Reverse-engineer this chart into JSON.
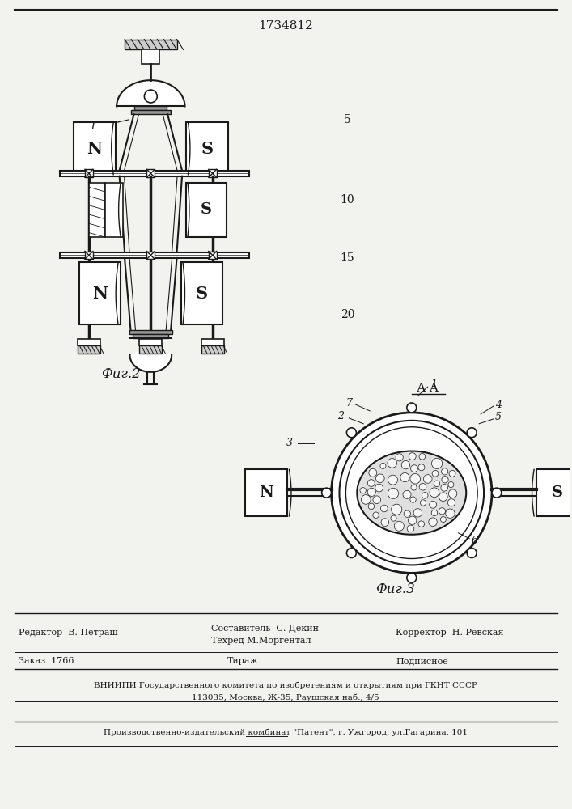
{
  "patent_number": "1734812",
  "fig2_label": "Фиг.2",
  "fig3_label": "Фиг.3",
  "section_label": "А-А",
  "editor_line": "Редактор  В. Петраш",
  "composer_line": "Составитель  С. Декин",
  "techred_line": "Техред М.Моргентал",
  "corrector_line": "Корректор  Н. Ревская",
  "order_line": "Заказ  1766",
  "tirazh_line": "Тираж",
  "podpisnoe_line": "Подписное",
  "vniipи_line": "ВНИИПИ Государственного комитета по изобретениям и открытиям при ГКНТ СССР",
  "address_line": "113035, Москва, Ж-35, Раушская наб., 4/5",
  "factory_line": "Производственно-издательский комбинат \"Патент\", г. Ужгород, ул.Гагарина, 101",
  "bg_color": "#f2f2ee",
  "line_color": "#1a1a1a",
  "text_color": "#1a1a1a"
}
